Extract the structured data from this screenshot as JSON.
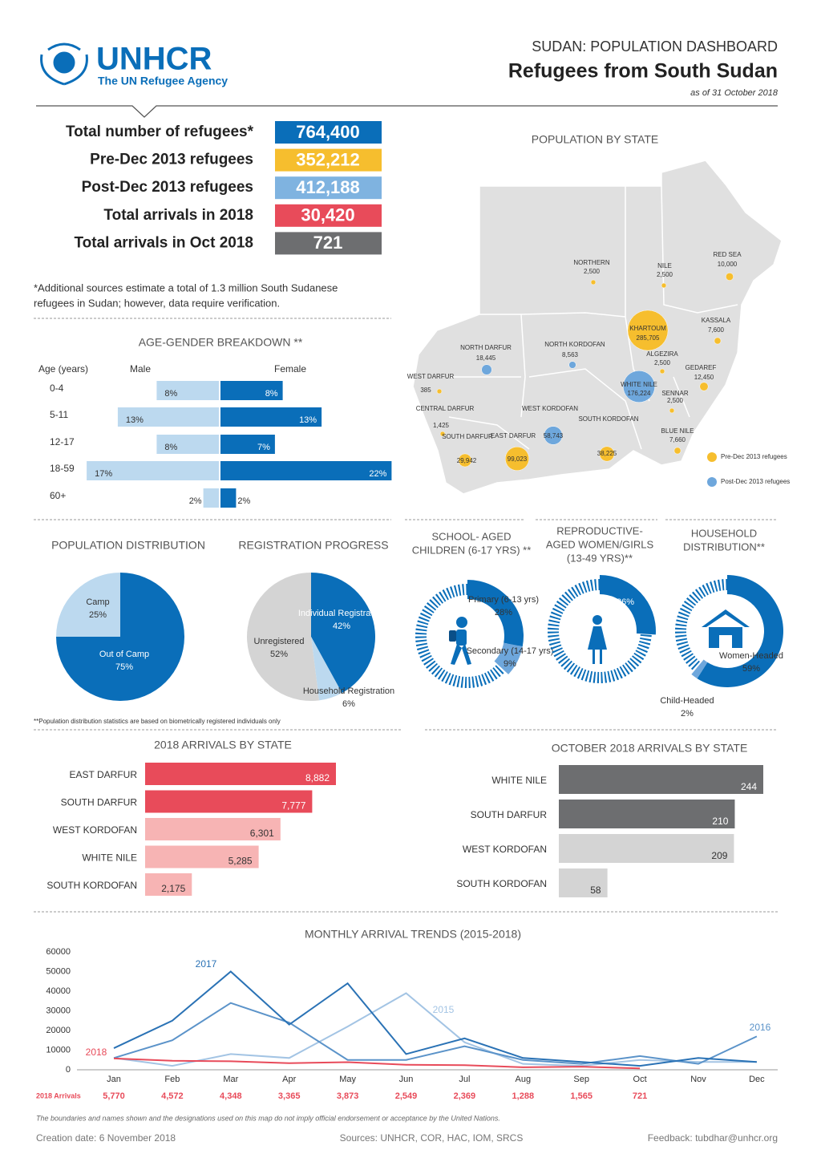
{
  "header": {
    "org": "UNHCR",
    "org_subtitle": "The UN Refugee Agency",
    "dashboard": "SUDAN: POPULATION DASHBOARD",
    "title": "Refugees from South Sudan",
    "date": "as of 31 October 2018"
  },
  "key_figures": [
    {
      "label": "Total number of refugees*",
      "value": "764,400",
      "color": "#0a6eb9"
    },
    {
      "label": "Pre-Dec 2013 refugees",
      "value": "352,212",
      "color": "#f6be2e"
    },
    {
      "label": "Post-Dec 2013 refugees",
      "value": "412,188",
      "color": "#7fb3e0"
    },
    {
      "label": "Total arrivals in 2018",
      "value": "30,420",
      "color": "#e84b5a"
    },
    {
      "label": "Total arrivals in Oct 2018",
      "value": "721",
      "color": "#6d6e70"
    }
  ],
  "note": [
    "*Additional sources estimate a total of 1.3 million South Sudanese",
    "refugees in Sudan; however, data require verification."
  ],
  "map": {
    "title": "POPULATION BY STATE",
    "states": [
      {
        "name": "NORTHERN",
        "value": 2500,
        "value_label": "2,500"
      },
      {
        "name": "NILE",
        "value": 2500,
        "value_label": "2,500"
      },
      {
        "name": "RED SEA",
        "value": 10000,
        "value_label": "10,000"
      },
      {
        "name": "KASSALA",
        "value": 7600,
        "value_label": "7,600"
      },
      {
        "name": "KHARTOUM",
        "value": 285705,
        "value_label": "285,705"
      },
      {
        "name": "ALGEZIRA",
        "value": 2500,
        "value_label": "2,500"
      },
      {
        "name": "GEDAREF",
        "value": 12450,
        "value_label": "12,450"
      },
      {
        "name": "WHITE NILE",
        "value": 176224,
        "value_label": "176,224"
      },
      {
        "name": "SENNAR",
        "value": 2500,
        "value_label": "2,500"
      },
      {
        "name": "BLUE NILE",
        "value": 7660,
        "value_label": "7,660"
      },
      {
        "name": "NORTH DARFUR",
        "value": 18445,
        "value_label": "18,445"
      },
      {
        "name": "NORTH KORDOFAN",
        "value": 8563,
        "value_label": "8,563"
      },
      {
        "name": "WEST DARFUR",
        "value": 385,
        "value_label": "385"
      },
      {
        "name": "CENTRAL DARFUR",
        "value": 1425,
        "value_label": "1,425"
      },
      {
        "name": "SOUTH DARFUR",
        "value": 29942,
        "value_label": "29,942"
      },
      {
        "name": "EAST DARFUR",
        "value": 99023,
        "value_label": "99,023"
      },
      {
        "name": "WEST KORDOFAN",
        "value": 58743,
        "value_label": "58,743"
      },
      {
        "name": "SOUTH KORDOFAN",
        "value": 38225,
        "value_label": "38,225"
      }
    ],
    "legend": [
      {
        "name": "Pre-Dec 2013 refugees",
        "color": "#f6be2e"
      },
      {
        "name": "Post-Dec 2013 refugees",
        "color": "#6ea7dc"
      }
    ]
  },
  "chart_data": [
    {
      "type": "diverging_bar",
      "title": "AGE-GENDER BREAKDOWN **",
      "category_label": "Age (years)",
      "categories": [
        "0-4",
        "5-11",
        "12-17",
        "18-59",
        "60+"
      ],
      "series": [
        {
          "name": "Male",
          "color": "#bcd9ef",
          "values": [
            8,
            13,
            8,
            17,
            2
          ],
          "value_labels": [
            "8%",
            "13%",
            "8%",
            "17%",
            "2%"
          ]
        },
        {
          "name": "Female",
          "color": "#0a6eb9",
          "values": [
            8,
            13,
            7,
            22,
            2
          ],
          "value_labels": [
            "8%",
            "13%",
            "7%",
            "22%",
            "2%"
          ]
        }
      ]
    },
    {
      "type": "pie",
      "title": "POPULATION DISTRIBUTION",
      "categories": [
        "Camp",
        "Out of Camp"
      ],
      "values": [
        25,
        75
      ],
      "value_labels": [
        "25%",
        "75%"
      ],
      "colors": [
        "#bcd9ef",
        "#0a6eb9"
      ]
    },
    {
      "type": "pie",
      "title": "REGISTRATION PROGRESS",
      "categories": [
        "Individual Registration",
        "Household Registration",
        "Unregistered"
      ],
      "values": [
        42,
        6,
        52
      ],
      "value_labels": [
        "42%",
        "6%",
        "52%"
      ],
      "colors": [
        "#0a6eb9",
        "#bcd9ef",
        "#d4d4d4"
      ]
    },
    {
      "type": "ring",
      "title": [
        "SCHOOL- AGED",
        "CHILDREN (6-17 YRS) **"
      ],
      "categories": [
        "Primary (6-13 yrs)",
        "Secondary (14-17 yrs)"
      ],
      "values": [
        28,
        9
      ],
      "value_labels": [
        "28%",
        "9%"
      ],
      "colors": [
        "#0a6eb9",
        "#6ea7dc"
      ]
    },
    {
      "type": "ring",
      "title": [
        "REPRODUCTIVE-",
        "AGED WOMEN/GIRLS",
        "(13-49 YRS)**"
      ],
      "categories": [
        null
      ],
      "values": [
        26
      ],
      "value_labels": [
        "26%"
      ],
      "colors": [
        "#0a6eb9"
      ]
    },
    {
      "type": "ring",
      "title": [
        "HOUSEHOLD",
        "DISTRIBUTION**"
      ],
      "categories": [
        "Women-Headed",
        "Child-Headed"
      ],
      "values": [
        59,
        2
      ],
      "value_labels": [
        "59%",
        "2%"
      ],
      "colors": [
        "#0a6eb9",
        "#6ea7dc"
      ]
    },
    {
      "type": "hbar",
      "title": "2018 ARRIVALS BY STATE",
      "categories": [
        "EAST DARFUR",
        "SOUTH DARFUR",
        "WEST KORDOFAN",
        "WHITE NILE",
        "SOUTH KORDOFAN"
      ],
      "values": [
        8882,
        7777,
        6301,
        5285,
        2175
      ],
      "value_labels": [
        "8,882",
        "7,777",
        "6,301",
        "5,285",
        "2,175"
      ],
      "colors": [
        "#e84b5a",
        "#e84b5a",
        "#f7b4b4",
        "#f7b4b4",
        "#f7b4b4"
      ]
    },
    {
      "type": "hbar",
      "title": "OCTOBER 2018 ARRIVALS BY STATE",
      "categories": [
        "WHITE NILE",
        "SOUTH DARFUR",
        "WEST KORDOFAN",
        "SOUTH KORDOFAN"
      ],
      "values": [
        244,
        210,
        209,
        58
      ],
      "colors": [
        "#6d6e70",
        "#6d6e70",
        "#d4d4d4",
        "#d4d4d4"
      ]
    },
    {
      "type": "line",
      "title": "MONTHLY ARRIVAL TRENDS (2015-2018)",
      "categories": [
        "Jan",
        "Feb",
        "Mar",
        "Apr",
        "May",
        "Jun",
        "Jul",
        "Aug",
        "Sep",
        "Oct",
        "Nov",
        "Dec"
      ],
      "ylim": [
        0,
        60000
      ],
      "yticks": [
        0,
        10000,
        20000,
        30000,
        40000,
        50000,
        60000
      ],
      "row_label": "2018 Arrivals",
      "series": [
        {
          "name": "2015",
          "color": "#a3c4e4",
          "values": [
            6000,
            2000,
            8000,
            6000,
            22000,
            39000,
            14000,
            3000,
            2000,
            5000,
            4000,
            4000
          ]
        },
        {
          "name": "2016",
          "color": "#5b93c9",
          "values": [
            6000,
            15000,
            34000,
            24000,
            5000,
            5000,
            12000,
            5000,
            3000,
            7000,
            3000,
            17000
          ]
        },
        {
          "name": "2017",
          "color": "#2a72b5",
          "values": [
            11000,
            25000,
            50000,
            23000,
            44000,
            8000,
            16000,
            6000,
            4000,
            2000,
            6000,
            4000
          ]
        },
        {
          "name": "2018",
          "color": "#e84b5a",
          "values": [
            5770,
            4572,
            4348,
            3365,
            3873,
            2549,
            2369,
            1288,
            1565,
            721,
            null,
            null
          ],
          "value_labels": [
            "5,770",
            "4,572",
            "4,348",
            "3,365",
            "3,873",
            "2,549",
            "2,369",
            "1,288",
            "1,565",
            "721",
            null,
            null
          ]
        }
      ]
    }
  ],
  "footnote": "**Population distribution statistics are based on biometrically registered individuals only",
  "footer": {
    "disclaimer": "The boundaries and names shown and the designations used on this map do not imply official endorsement or acceptance by the United Nations.",
    "created": "Creation date: 6 November 2018",
    "sources": "Sources: UNHCR, COR, HAC, IOM, SRCS",
    "feedback": "Feedback: tubdhar@unhcr.org"
  }
}
